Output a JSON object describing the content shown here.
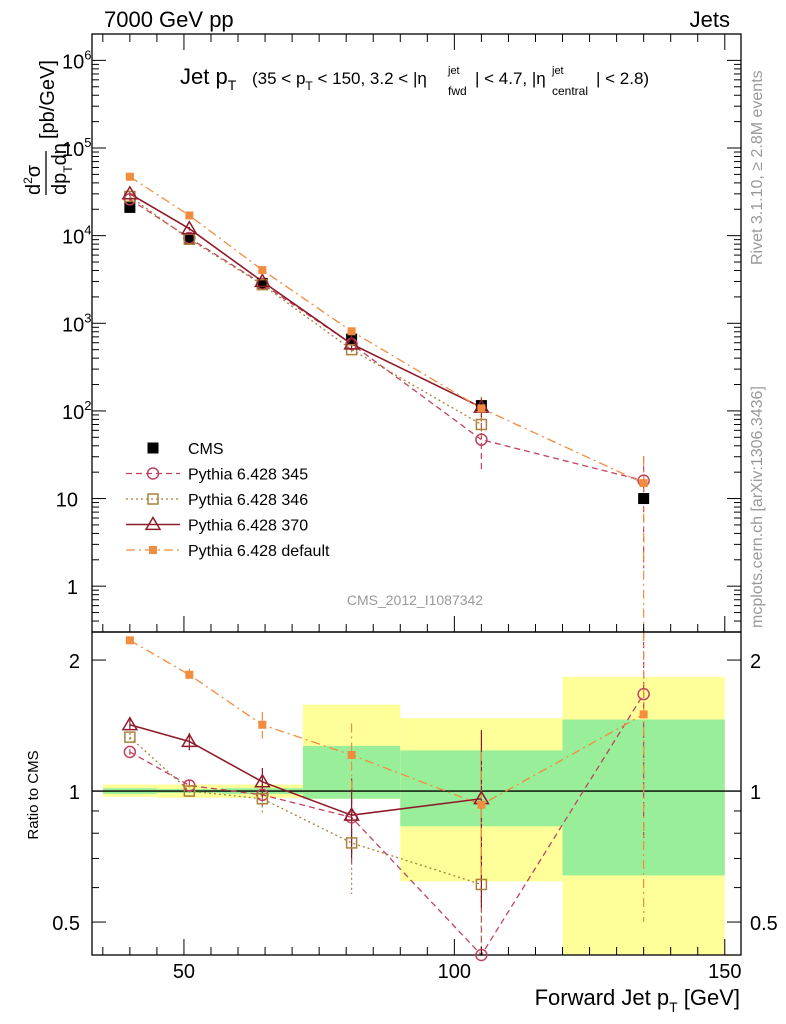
{
  "header": {
    "left": "7000 GeV pp",
    "right": "Jets"
  },
  "side_labels": {
    "rivet": "Rivet 3.1.10, ≥ 2.8M events",
    "mcplots": "mcplots.cern.ch [arXiv:1306.3436]"
  },
  "chart_data": [
    {
      "panel": "main",
      "type": "scatter",
      "title": "Jet pT (35 < pT < 150, 3.2 < |η jet fwd| < 4.7, |η jet central| < 2.8)",
      "title_parts": {
        "main": "Jet p",
        "sub_T": "T",
        "range": "(35 < p",
        "mid1": " < 150, 3.2 < |η",
        "fwd_sup": "jet",
        "fwd_sub": "fwd",
        "mid2": "| < 4.7, |η",
        "cen_sup": "jet",
        "cen_sub": "central",
        "end": "| < 2.8)"
      },
      "ylabel": "d²σ/dp_T dη [pb/GeV]",
      "ylabel_unit": "[pb/GeV]",
      "y_scale": "log",
      "ylim": [
        0.3,
        2000000
      ],
      "y_ticks": [
        {
          "value": 1,
          "label": "1"
        },
        {
          "value": 10,
          "label": "10"
        },
        {
          "value": 100,
          "label": "10",
          "exp": "2"
        },
        {
          "value": 1000,
          "label": "10",
          "exp": "3"
        },
        {
          "value": 10000,
          "label": "10",
          "exp": "4"
        },
        {
          "value": 100000,
          "label": "10",
          "exp": "5"
        },
        {
          "value": 1000000,
          "label": "10",
          "exp": "6"
        }
      ],
      "xlim": [
        33,
        153
      ],
      "watermark": "CMS_2012_I1087342",
      "legend_position": "bottom-left",
      "series": [
        {
          "name": "CMS",
          "color": "#000000",
          "marker": "filled-square",
          "line": "none",
          "points": [
            [
              40,
              21000
            ],
            [
              51,
              9200
            ],
            [
              64.5,
              2850
            ],
            [
              81,
              660
            ],
            [
              105,
              115
            ],
            [
              135,
              10
            ]
          ]
        },
        {
          "name": "Pythia 6.428 345",
          "color": "#c0425e",
          "marker": "open-circle",
          "line": "dashed",
          "points": [
            [
              40,
              26000
            ],
            [
              51,
              9400
            ],
            [
              64.5,
              2820
            ],
            [
              81,
              580
            ],
            [
              105,
              47
            ],
            [
              135,
              16
            ]
          ],
          "errors": [
            [
              40,
              0.05
            ],
            [
              51,
              0.05
            ],
            [
              64.5,
              0.05
            ],
            [
              81,
              0.12
            ],
            [
              105,
              0.55
            ],
            [
              135,
              0.9
            ]
          ]
        },
        {
          "name": "Pythia 6.428 346",
          "color": "#a9813b",
          "marker": "open-square",
          "line": "dotted",
          "points": [
            [
              40,
              28000
            ],
            [
              51,
              9100
            ],
            [
              64.5,
              2760
            ],
            [
              81,
              500
            ],
            [
              105,
              70
            ]
          ],
          "errors": [
            [
              40,
              0.05
            ],
            [
              51,
              0.05
            ],
            [
              64.5,
              0.05
            ],
            [
              81,
              0.12
            ],
            [
              105,
              0.3
            ]
          ]
        },
        {
          "name": "Pythia 6.428 370",
          "color": "#8e1b2a",
          "marker": "open-triangle",
          "line": "solid",
          "points": [
            [
              40,
              30000
            ],
            [
              51,
              12000
            ],
            [
              64.5,
              3000
            ],
            [
              81,
              580
            ],
            [
              105,
              110
            ]
          ],
          "errors": [
            [
              40,
              0.05
            ],
            [
              51,
              0.05
            ],
            [
              64.5,
              0.05
            ],
            [
              81,
              0.12
            ],
            [
              105,
              0.3
            ]
          ]
        },
        {
          "name": "Pythia 6.428 default",
          "color": "#f28c3e",
          "marker": "filled-square-small",
          "line": "dashdot",
          "points": [
            [
              40,
              47000
            ],
            [
              51,
              17000
            ],
            [
              64.5,
              4050
            ],
            [
              81,
              810
            ],
            [
              105,
              107
            ],
            [
              135,
              15
            ]
          ],
          "errors": [
            [
              40,
              0.03
            ],
            [
              51,
              0.03
            ],
            [
              64.5,
              0.03
            ],
            [
              81,
              0.1
            ],
            [
              105,
              0.3
            ],
            [
              135,
              1.0
            ]
          ]
        }
      ]
    },
    {
      "panel": "ratio",
      "type": "scatter",
      "ylabel": "Ratio to CMS",
      "xlabel": "Forward Jet pT [GeV]",
      "xlabel_parts": {
        "main": "Forward Jet p",
        "sub": "T",
        "unit": " [GeV]"
      },
      "xlim": [
        33,
        153
      ],
      "y_scale": "log",
      "ylim": [
        0.42,
        2.32
      ],
      "x_ticks": [
        {
          "value": 50,
          "label": "50"
        },
        {
          "value": 100,
          "label": "100"
        },
        {
          "value": 150,
          "label": "150"
        }
      ],
      "y_ticks": [
        {
          "value": 0.5,
          "label": "0.5"
        },
        {
          "value": 1,
          "label": "1"
        },
        {
          "value": 2,
          "label": "2"
        }
      ],
      "bands": [
        {
          "x": [
            35,
            45
          ],
          "stat": [
            0.985,
            1.015
          ],
          "total": [
            0.97,
            1.035
          ]
        },
        {
          "x": [
            45,
            57
          ],
          "stat": [
            0.99,
            1.01
          ],
          "total": [
            0.965,
            1.035
          ]
        },
        {
          "x": [
            57,
            72
          ],
          "stat": [
            0.985,
            1.015
          ],
          "total": [
            0.965,
            1.035
          ]
        },
        {
          "x": [
            72,
            90
          ],
          "stat": [
            0.96,
            1.27
          ],
          "total": [
            0.96,
            1.58
          ]
        },
        {
          "x": [
            90,
            120
          ],
          "stat": [
            0.83,
            1.24
          ],
          "total": [
            0.62,
            1.47
          ]
        },
        {
          "x": [
            120,
            150
          ],
          "stat": [
            0.64,
            1.46
          ],
          "total": [
            0.4,
            1.83
          ]
        }
      ],
      "reference_line": 1,
      "series": [
        {
          "name": "Pythia 6.428 345",
          "color": "#c0425e",
          "marker": "open-circle",
          "line": "dashed",
          "points": [
            [
              40,
              1.23
            ],
            [
              51,
              1.03
            ],
            [
              64.5,
              0.98
            ],
            [
              81,
              0.87
            ],
            [
              105,
              0.41
            ],
            [
              135,
              1.67
            ]
          ],
          "err": [
            0.02,
            0.03,
            0.06,
            0.2,
            0.3,
            0.9
          ]
        },
        {
          "name": "Pythia 6.428 346",
          "color": "#a9813b",
          "marker": "open-square",
          "line": "dotted",
          "points": [
            [
              40,
              1.33
            ],
            [
              51,
              1.0
            ],
            [
              64.5,
              0.96
            ],
            [
              81,
              0.76
            ],
            [
              105,
              0.61
            ]
          ],
          "err": [
            0.03,
            0.03,
            0.07,
            0.18,
            0.2
          ]
        },
        {
          "name": "Pythia 6.428 370",
          "color": "#8e1b2a",
          "marker": "open-triangle",
          "line": "solid",
          "points": [
            [
              40,
              1.42
            ],
            [
              51,
              1.3
            ],
            [
              64.5,
              1.05
            ],
            [
              81,
              0.88
            ],
            [
              105,
              0.96
            ]
          ],
          "err": [
            0.04,
            0.06,
            0.08,
            0.18,
            0.42
          ]
        },
        {
          "name": "Pythia 6.428 default",
          "color": "#f28c3e",
          "marker": "filled-square-small",
          "line": "dashdot",
          "points": [
            [
              40,
              2.22
            ],
            [
              51,
              1.85
            ],
            [
              64.5,
              1.42
            ],
            [
              81,
              1.21
            ],
            [
              105,
              0.93
            ],
            [
              135,
              1.5
            ]
          ],
          "err": [
            0.04,
            0.06,
            0.1,
            0.22,
            0.3,
            1.0
          ]
        }
      ]
    }
  ]
}
